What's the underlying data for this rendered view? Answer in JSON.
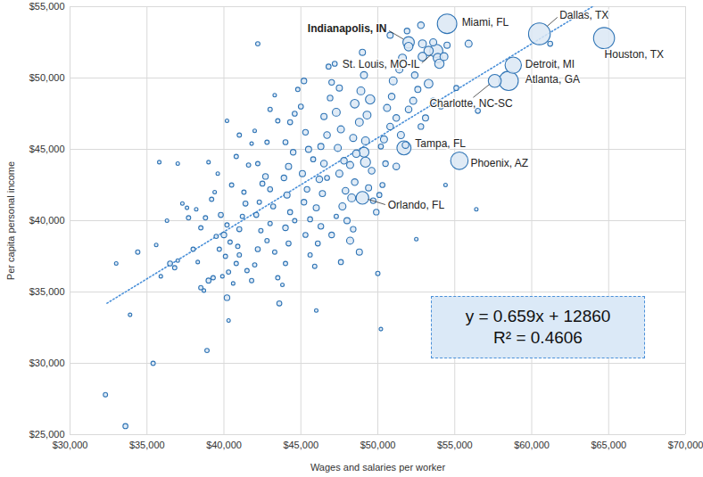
{
  "chart_data": {
    "type": "scatter",
    "xlabel": "Wages and salaries per worker",
    "ylabel": "Per capita personal income",
    "xlim": [
      30000,
      70000
    ],
    "ylim": [
      25000,
      55000
    ],
    "xticks": [
      {
        "value": 30000,
        "label": "$30,000"
      },
      {
        "value": 35000,
        "label": "$35,000"
      },
      {
        "value": 40000,
        "label": "$40,000"
      },
      {
        "value": 45000,
        "label": "$45,000"
      },
      {
        "value": 50000,
        "label": "$50,000"
      },
      {
        "value": 55000,
        "label": "$55,000"
      },
      {
        "value": 60000,
        "label": "$60,000"
      },
      {
        "value": 65000,
        "label": "$65,000"
      },
      {
        "value": 70000,
        "label": "$70,000"
      }
    ],
    "yticks": [
      {
        "value": 25000,
        "label": "$25,000"
      },
      {
        "value": 30000,
        "label": "$30,000"
      },
      {
        "value": 35000,
        "label": "$35,000"
      },
      {
        "value": 40000,
        "label": "$40,000"
      },
      {
        "value": 45000,
        "label": "$45,000"
      },
      {
        "value": 50000,
        "label": "$50,000"
      },
      {
        "value": 55000,
        "label": "$55,000"
      }
    ],
    "grid": true,
    "color": "#2f74b5",
    "marker": "circle",
    "points": [
      [
        32300,
        27800,
        0.3
      ],
      [
        33600,
        25600,
        0.4
      ],
      [
        35400,
        30000,
        0.3
      ],
      [
        33900,
        33400,
        0.2
      ],
      [
        38900,
        30900,
        0.3
      ],
      [
        50200,
        32400,
        0.2
      ],
      [
        50000,
        36300,
        0.3
      ],
      [
        42200,
        52400,
        0.3
      ],
      [
        56400,
        40800,
        0.2
      ],
      [
        54400,
        42500,
        0.2
      ],
      [
        52500,
        38700,
        0.2
      ],
      [
        46000,
        33700,
        0.2
      ],
      [
        43600,
        34200,
        0.4
      ],
      [
        40200,
        34600,
        0.5
      ],
      [
        40300,
        33000,
        0.2
      ],
      [
        33000,
        37000,
        0.2
      ],
      [
        34400,
        37800,
        0.3
      ],
      [
        36300,
        40000,
        0.2
      ],
      [
        37700,
        40200,
        0.3
      ],
      [
        39600,
        43300,
        0.2
      ],
      [
        40500,
        42500,
        0.3
      ],
      [
        44600,
        40000,
        0.3
      ],
      [
        45800,
        44300,
        0.4
      ],
      [
        46700,
        43000,
        0.4
      ],
      [
        47300,
        40300,
        0.3
      ],
      [
        50200,
        45200,
        0.4
      ],
      [
        35600,
        38300,
        0.2
      ],
      [
        35900,
        36100,
        0.2
      ],
      [
        36500,
        37000,
        0.4
      ],
      [
        36800,
        36700,
        0.3
      ],
      [
        37000,
        37200,
        0.2
      ],
      [
        37300,
        41200,
        0.2
      ],
      [
        37600,
        40900,
        0.2
      ],
      [
        37000,
        44000,
        0.2
      ],
      [
        35800,
        44100,
        0.2
      ],
      [
        38000,
        38000,
        0.3
      ],
      [
        38300,
        37100,
        0.2
      ],
      [
        38500,
        35300,
        0.3
      ],
      [
        38700,
        35100,
        0.2
      ],
      [
        39000,
        35800,
        0.4
      ],
      [
        39300,
        36000,
        0.3
      ],
      [
        39500,
        38900,
        0.3
      ],
      [
        39700,
        38000,
        0.3
      ],
      [
        39900,
        36100,
        0.2
      ],
      [
        39200,
        41500,
        0.3
      ],
      [
        39000,
        44100,
        0.2
      ],
      [
        38800,
        40200,
        0.3
      ],
      [
        39400,
        42000,
        0.2
      ],
      [
        38500,
        39500,
        0.3
      ],
      [
        38200,
        40800,
        0.2
      ],
      [
        39800,
        40400,
        0.4
      ],
      [
        40000,
        39000,
        0.5
      ],
      [
        40200,
        39700,
        0.3
      ],
      [
        40400,
        38500,
        0.3
      ],
      [
        40100,
        37500,
        0.3
      ],
      [
        40300,
        36400,
        0.3
      ],
      [
        40600,
        35600,
        0.2
      ],
      [
        40800,
        37000,
        0.3
      ],
      [
        40900,
        38200,
        0.3
      ],
      [
        41000,
        39400,
        0.4
      ],
      [
        41200,
        40300,
        0.3
      ],
      [
        41400,
        41200,
        0.4
      ],
      [
        41300,
        42000,
        0.3
      ],
      [
        41600,
        43900,
        0.3
      ],
      [
        41800,
        45400,
        0.2
      ],
      [
        41000,
        46000,
        0.3
      ],
      [
        40200,
        47000,
        0.2
      ],
      [
        40800,
        44500,
        0.3
      ],
      [
        41000,
        37600,
        0.3
      ],
      [
        41500,
        36500,
        0.3
      ],
      [
        41800,
        35800,
        0.3
      ],
      [
        42000,
        36900,
        0.3
      ],
      [
        42200,
        38000,
        0.4
      ],
      [
        42400,
        39300,
        0.3
      ],
      [
        42100,
        40400,
        0.4
      ],
      [
        42300,
        41300,
        0.3
      ],
      [
        42500,
        42600,
        0.4
      ],
      [
        42200,
        44000,
        0.3
      ],
      [
        42800,
        45500,
        0.3
      ],
      [
        42000,
        46300,
        0.2
      ],
      [
        43000,
        47800,
        0.3
      ],
      [
        43300,
        48800,
        0.2
      ],
      [
        43500,
        47000,
        0.3
      ],
      [
        42700,
        43100,
        0.5
      ],
      [
        43000,
        42200,
        0.4
      ],
      [
        43200,
        41000,
        0.4
      ],
      [
        43000,
        39800,
        0.3
      ],
      [
        42800,
        38600,
        0.3
      ],
      [
        43300,
        37800,
        0.3
      ],
      [
        43500,
        36000,
        0.3
      ],
      [
        43800,
        35500,
        0.2
      ],
      [
        44000,
        37000,
        0.3
      ],
      [
        44200,
        38400,
        0.4
      ],
      [
        44000,
        39500,
        0.5
      ],
      [
        44300,
        40600,
        0.4
      ],
      [
        44100,
        41800,
        0.6
      ],
      [
        43900,
        43000,
        0.5
      ],
      [
        44200,
        43800,
        0.6
      ],
      [
        44500,
        44800,
        0.5
      ],
      [
        44000,
        45500,
        0.4
      ],
      [
        44300,
        46900,
        0.4
      ],
      [
        44600,
        47500,
        0.4
      ],
      [
        44800,
        49200,
        0.3
      ],
      [
        45200,
        49800,
        0.5
      ],
      [
        45000,
        48000,
        0.4
      ],
      [
        45300,
        46200,
        0.5
      ],
      [
        45500,
        45000,
        0.6
      ],
      [
        45100,
        43300,
        0.6
      ],
      [
        45400,
        42200,
        0.5
      ],
      [
        45200,
        41300,
        0.5
      ],
      [
        45600,
        40100,
        0.4
      ],
      [
        45300,
        39000,
        0.4
      ],
      [
        45600,
        37600,
        0.3
      ],
      [
        45900,
        36800,
        0.3
      ],
      [
        46100,
        38400,
        0.4
      ],
      [
        46300,
        39600,
        0.5
      ],
      [
        46000,
        40900,
        0.6
      ],
      [
        46400,
        41900,
        0.6
      ],
      [
        46200,
        42900,
        0.7
      ],
      [
        46500,
        44000,
        0.7
      ],
      [
        46300,
        45200,
        0.6
      ],
      [
        46700,
        46000,
        0.7
      ],
      [
        46500,
        47300,
        0.6
      ],
      [
        46900,
        48600,
        0.5
      ],
      [
        47000,
        49700,
        0.5
      ],
      [
        46800,
        50800,
        0.4
      ],
      [
        47200,
        51000,
        0.4
      ],
      [
        47500,
        49300,
        0.6
      ],
      [
        47300,
        47600,
        1.0
      ],
      [
        47600,
        46400,
        0.8
      ],
      [
        47400,
        45100,
        0.8
      ],
      [
        47800,
        44200,
        0.7
      ],
      [
        47500,
        43300,
        0.8
      ],
      [
        47900,
        42100,
        0.7
      ],
      [
        47700,
        41000,
        0.8
      ],
      [
        48000,
        40000,
        0.6
      ],
      [
        48200,
        38600,
        0.8
      ],
      [
        47600,
        37100,
        0.4
      ],
      [
        48400,
        39400,
        0.5
      ],
      [
        48300,
        41600,
        1.0
      ],
      [
        48500,
        42700,
        0.7
      ],
      [
        48200,
        43900,
        0.8
      ],
      [
        48600,
        44700,
        0.9
      ],
      [
        48400,
        45800,
        0.8
      ],
      [
        48800,
        46900,
        1.0
      ],
      [
        48500,
        48200,
        1.2
      ],
      [
        48900,
        49100,
        1.0
      ],
      [
        49100,
        50200,
        0.8
      ],
      [
        49000,
        51800,
        0.6
      ],
      [
        49300,
        47400,
        1.0
      ],
      [
        49500,
        48500,
        1.4
      ],
      [
        49200,
        45600,
        1.0
      ],
      [
        49200,
        44100,
        1.6
      ],
      [
        49100,
        44800,
        1.6
      ],
      [
        49600,
        43500,
        0.7
      ],
      [
        49400,
        42300,
        0.6
      ],
      [
        49700,
        41400,
        0.5
      ],
      [
        49900,
        40600,
        0.5
      ],
      [
        50100,
        41800,
        0.4
      ],
      [
        50300,
        42500,
        0.4
      ],
      [
        50500,
        44000,
        0.5
      ],
      [
        50400,
        45700,
        0.8
      ],
      [
        50800,
        46600,
        0.7
      ],
      [
        50600,
        47900,
        0.8
      ],
      [
        50900,
        48700,
        0.7
      ],
      [
        51000,
        49800,
        1.0
      ],
      [
        51400,
        50600,
        0.8
      ],
      [
        51600,
        51400,
        1.0
      ],
      [
        51200,
        47200,
        0.7
      ],
      [
        51500,
        46000,
        0.8
      ],
      [
        51800,
        45300,
        0.7
      ],
      [
        52000,
        47800,
        0.7
      ],
      [
        52300,
        48400,
        0.8
      ],
      [
        52600,
        49200,
        0.6
      ],
      [
        52400,
        50200,
        0.7
      ],
      [
        52900,
        51500,
        1.2
      ],
      [
        52900,
        52400,
        1.0
      ],
      [
        53300,
        51900,
        1.4
      ],
      [
        53600,
        52500,
        0.8
      ],
      [
        53900,
        51400,
        1.4
      ],
      [
        54300,
        51500,
        1.0
      ],
      [
        54000,
        51000,
        1.4
      ],
      [
        53300,
        49600,
        1.2
      ],
      [
        53100,
        47200,
        0.6
      ],
      [
        52800,
        46600,
        0.5
      ],
      [
        53600,
        48400,
        0.5
      ],
      [
        54100,
        48000,
        0.4
      ],
      [
        55100,
        49300,
        0.4
      ],
      [
        55900,
        52400,
        0.8
      ],
      [
        56500,
        47700,
        0.4
      ],
      [
        54500,
        52300,
        0.6
      ],
      [
        52800,
        53700,
        0.7
      ],
      [
        50800,
        53000,
        0.6
      ],
      [
        51200,
        43800,
        0.7
      ],
      [
        48800,
        37800,
        0.6
      ],
      [
        47000,
        39000,
        0.5
      ],
      [
        51900,
        53300,
        0.5
      ],
      [
        61200,
        52400,
        0.4
      ],
      [
        52000,
        52200,
        1.2
      ],
      [
        52000,
        52500,
        2.1
      ],
      [
        54500,
        53800,
        6.1
      ],
      [
        60500,
        53100,
        7.6
      ],
      [
        64700,
        52800,
        7.1
      ],
      [
        53800,
        51900,
        2.8
      ],
      [
        58800,
        50900,
        4.3
      ],
      [
        58500,
        49800,
        6.0
      ],
      [
        57600,
        49800,
        2.7
      ],
      [
        51700,
        45100,
        3.2
      ],
      [
        55300,
        44200,
        4.9
      ],
      [
        49000,
        41600,
        2.6
      ]
    ],
    "annotations": [
      {
        "text": "Indianapolis, IN",
        "x": 52000,
        "y": 52500
      },
      {
        "text": "Miami, FL",
        "x": 54500,
        "y": 53800
      },
      {
        "text": "Dallas, TX",
        "x": 60500,
        "y": 53100
      },
      {
        "text": "Houston, TX",
        "x": 64700,
        "y": 52800
      },
      {
        "text": "St. Louis, MO-IL",
        "x": 53800,
        "y": 51900
      },
      {
        "text": "Detroit, MI",
        "x": 58800,
        "y": 50900
      },
      {
        "text": "Atlanta, GA",
        "x": 58500,
        "y": 49800
      },
      {
        "text": "Charlotte, NC-SC",
        "x": 57600,
        "y": 49800
      },
      {
        "text": "Tampa, FL",
        "x": 51700,
        "y": 45100
      },
      {
        "text": "Phoenix, AZ",
        "x": 55300,
        "y": 44200
      },
      {
        "text": "Orlando, FL",
        "x": 49000,
        "y": 41600
      }
    ],
    "trendline": {
      "slope": 0.659,
      "intercept": 12860,
      "x_start": 32400,
      "color": "#4a90d9",
      "line_style": "dotted"
    },
    "equation_text": [
      "y = 0.659x + 12860",
      "R² = 0.4606"
    ]
  }
}
